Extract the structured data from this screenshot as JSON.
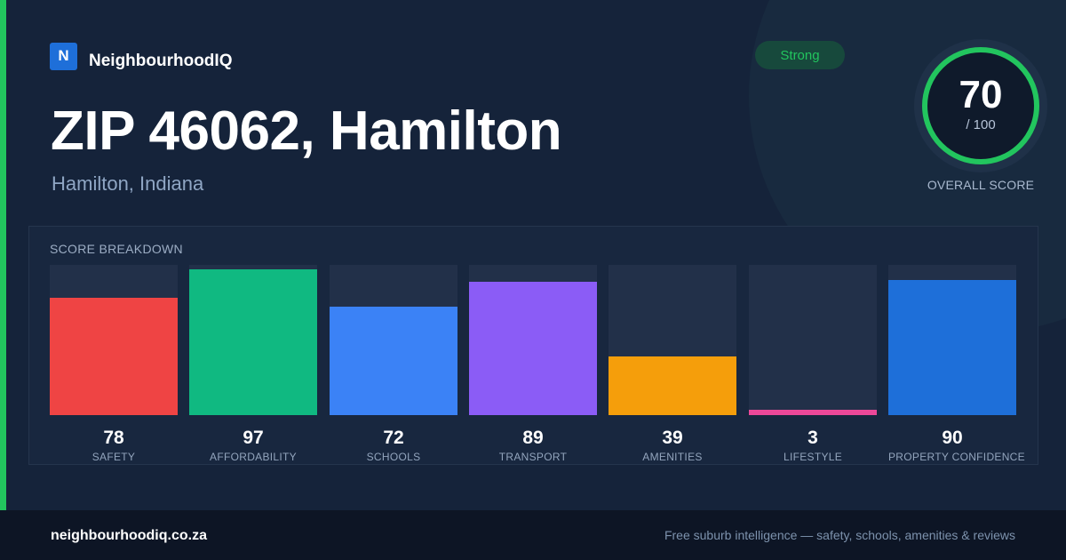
{
  "brand": {
    "logo_letter": "N",
    "name": "NeighbourhoodIQ"
  },
  "header": {
    "title": "ZIP 46062, Hamilton",
    "subtitle": "Hamilton, Indiana"
  },
  "badge": {
    "label": "Strong",
    "color": "#22c55e"
  },
  "overall_score": {
    "value": "70",
    "max": "/ 100",
    "label": "OVERALL SCORE",
    "fraction": 0.7,
    "ring_color": "#22c55e"
  },
  "breakdown": {
    "title": "SCORE BREAKDOWN",
    "items": [
      {
        "label": "SAFETY",
        "value": "78",
        "score": 78,
        "color": "#ef4444"
      },
      {
        "label": "AFFORDABILITY",
        "value": "97",
        "score": 97,
        "color": "#10b981"
      },
      {
        "label": "SCHOOLS",
        "value": "72",
        "score": 72,
        "color": "#3b82f6"
      },
      {
        "label": "TRANSPORT",
        "value": "89",
        "score": 89,
        "color": "#8b5cf6"
      },
      {
        "label": "AMENITIES",
        "value": "39",
        "score": 39,
        "color": "#f59e0b"
      },
      {
        "label": "LIFESTYLE",
        "value": "3",
        "score": 3,
        "color": "#ec4899"
      },
      {
        "label": "PROPERTY CONFIDENCE",
        "value": "90",
        "score": 90,
        "color": "#1e6fd9"
      }
    ]
  },
  "footer": {
    "url": "neighbourhoodiq.co.za",
    "tagline": "Free suburb intelligence — safety, schools, amenities & reviews"
  },
  "colors": {
    "accent": "#22c55e",
    "background": "#15233a",
    "footer_bg": "#0d1525"
  }
}
